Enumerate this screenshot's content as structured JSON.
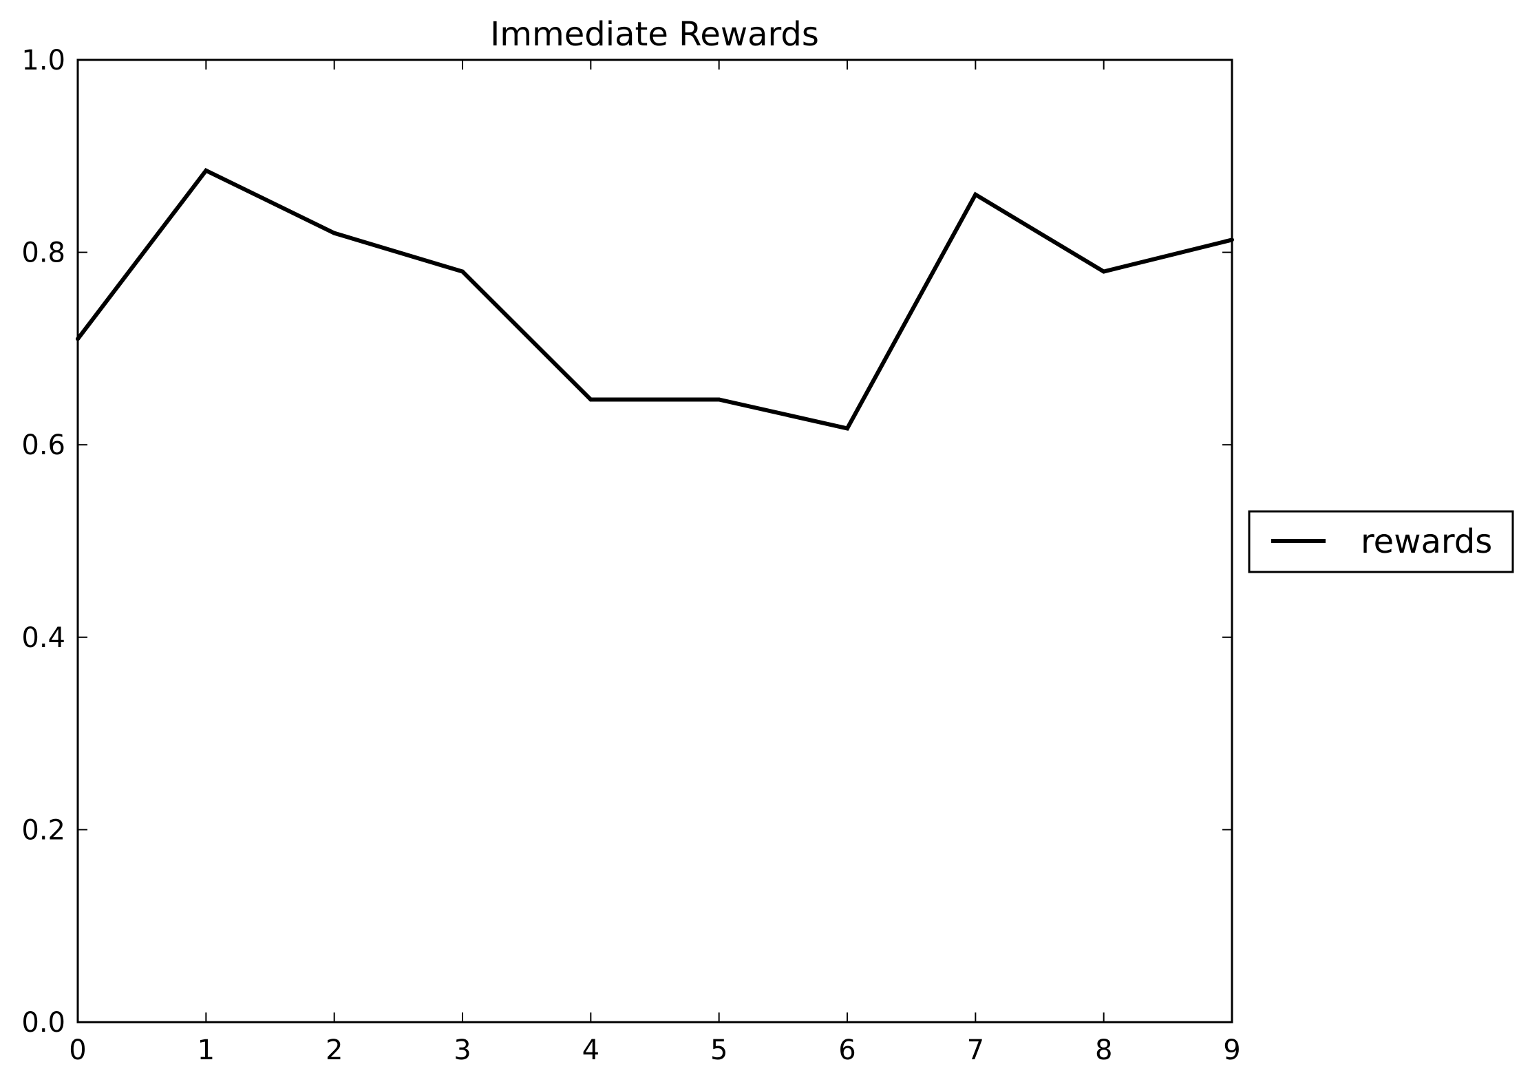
{
  "chart_data": {
    "type": "line",
    "title": "Immediate Rewards",
    "xlabel": "",
    "ylabel": "",
    "x": [
      0,
      1,
      2,
      3,
      4,
      5,
      6,
      7,
      8,
      9
    ],
    "series": [
      {
        "name": "rewards",
        "color": "#000000",
        "values": [
          0.71,
          0.885,
          0.82,
          0.78,
          0.647,
          0.647,
          0.617,
          0.86,
          0.78,
          0.813
        ]
      }
    ],
    "xlim": [
      0,
      9
    ],
    "ylim": [
      0.0,
      1.0
    ],
    "xticks": [
      "0",
      "1",
      "2",
      "3",
      "4",
      "5",
      "6",
      "7",
      "8",
      "9"
    ],
    "yticks": [
      "0.0",
      "0.2",
      "0.4",
      "0.6",
      "0.8",
      "1.0"
    ],
    "grid": false,
    "legend_position": "outside-right"
  }
}
